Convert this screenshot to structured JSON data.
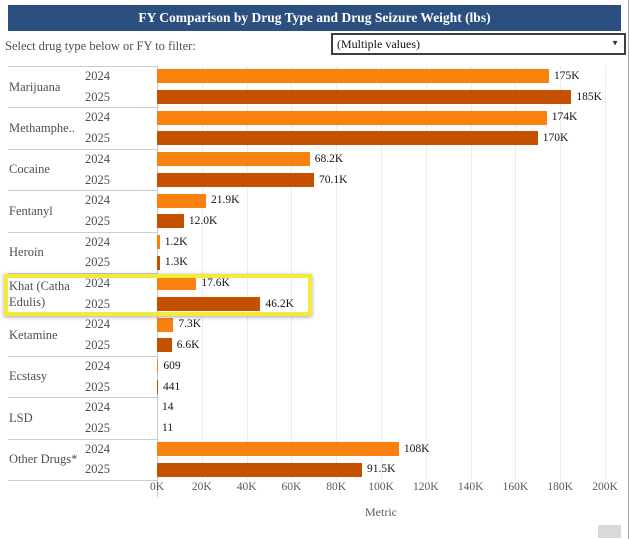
{
  "header": {
    "title": "FY Comparison by Drug Type and Drug Seizure Weight (lbs)",
    "bg_color": "#2B4F7E",
    "text_color": "#ffffff"
  },
  "filter": {
    "label": "Select drug type below or FY to filter:",
    "dropdown_value": "(Multiple values)",
    "dropdown_caret_icon": "▼"
  },
  "chart_data": {
    "type": "bar",
    "orientation": "horizontal",
    "title": "FY Comparison by Drug Type and Drug Seizure Weight (lbs)",
    "categories": [
      "Marijuana",
      "Methamphe..",
      "Cocaine",
      "Fentanyl",
      "Heroin",
      "Khat (Catha Edulis)",
      "Ketamine",
      "Ecstasy",
      "LSD",
      "Other Drugs*"
    ],
    "series": [
      {
        "name": "2024",
        "color": "#FB810E",
        "values": [
          175000,
          174000,
          68200,
          21900,
          1200,
          17600,
          7300,
          609,
          14,
          108000
        ],
        "labels": [
          "175K",
          "174K",
          "68.2K",
          "21.9K",
          "1.2K",
          "17.6K",
          "7.3K",
          "609",
          "14",
          "108K"
        ]
      },
      {
        "name": "2025",
        "color": "#C55100",
        "values": [
          185000,
          170000,
          70100,
          12000,
          1300,
          46200,
          6600,
          441,
          11,
          91500
        ],
        "labels": [
          "185K",
          "170K",
          "70.1K",
          "12.0K",
          "1.3K",
          "46.2K",
          "6.6K",
          "441",
          "11",
          "91.5K"
        ]
      }
    ],
    "xlabel": "Metric",
    "xlim": [
      0,
      200000
    ],
    "xticks": [
      "0K",
      "20K",
      "40K",
      "60K",
      "80K",
      "100K",
      "120K",
      "140K",
      "160K",
      "180K",
      "200K"
    ],
    "grid": true,
    "legend": "none",
    "highlighted_category": "Khat (Catha Edulis)",
    "highlight_color": "#F3EA3A"
  }
}
